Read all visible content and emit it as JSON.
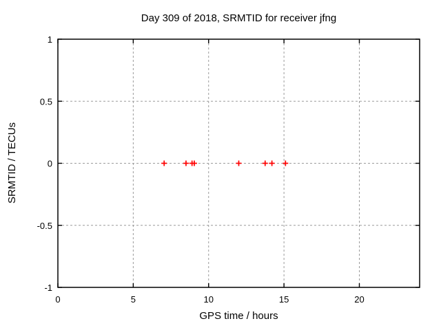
{
  "chart_data": {
    "type": "scatter",
    "title": "Day 309 of 2018, SRMTID for receiver jfng",
    "xlabel": "GPS time / hours",
    "ylabel": "SRMTID / TECUs",
    "xlim": [
      0,
      24
    ],
    "ylim": [
      -1,
      1
    ],
    "xticks": [
      0,
      5,
      10,
      15,
      20
    ],
    "yticks": [
      1,
      0.5,
      0,
      -0.5,
      -1
    ],
    "grid": true,
    "legend": "none",
    "marker": "plus",
    "marker_color": "#ff0000",
    "grid_color": "#9a9a9a",
    "border_color": "#000000",
    "background_color": "#ffffff",
    "points": [
      {
        "x": 7.05,
        "y": 0
      },
      {
        "x": 8.5,
        "y": 0
      },
      {
        "x": 8.9,
        "y": 0
      },
      {
        "x": 9.05,
        "y": 0
      },
      {
        "x": 12.0,
        "y": 0
      },
      {
        "x": 13.75,
        "y": 0
      },
      {
        "x": 14.2,
        "y": 0
      },
      {
        "x": 15.1,
        "y": 0
      }
    ]
  }
}
